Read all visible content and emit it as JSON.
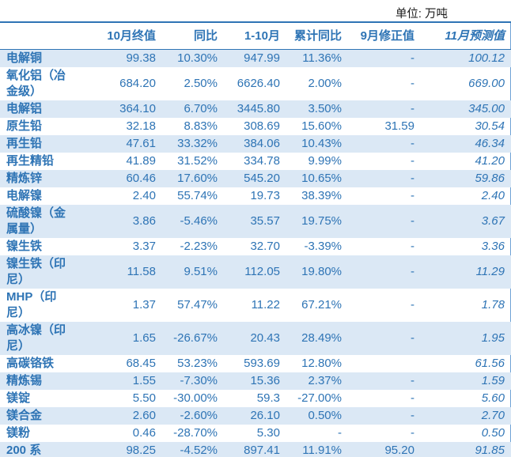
{
  "unit_label": "单位: 万吨",
  "colors": {
    "accent_blue": "#2E74B5",
    "value_blue": "#2E74B5",
    "row_band_blue": "#DBE8F5",
    "rule_blue": "#2E74B5",
    "right_edge_blue": "#6FA3D6"
  },
  "table": {
    "columns": [
      "",
      "10月终值",
      "同比",
      "1-10月",
      "累计同比",
      "9月修正值",
      "11月预测值"
    ],
    "rows": [
      {
        "label": "电解铜",
        "values": [
          "99.38",
          "10.30%",
          "947.99",
          "11.36%",
          "-",
          "100.12"
        ]
      },
      {
        "label": "氧化铝（冶金级）",
        "values": [
          "684.20",
          "2.50%",
          "6626.40",
          "2.00%",
          "-",
          "669.00"
        ]
      },
      {
        "label": "电解铝",
        "values": [
          "364.10",
          "6.70%",
          "3445.80",
          "3.50%",
          "-",
          "345.00"
        ]
      },
      {
        "label": "原生铅",
        "values": [
          "32.18",
          "8.83%",
          "308.69",
          "15.60%",
          "31.59",
          "30.54"
        ]
      },
      {
        "label": "再生铅",
        "values": [
          "47.61",
          "33.32%",
          "384.06",
          "10.43%",
          "-",
          "46.34"
        ]
      },
      {
        "label": "再生精铅",
        "values": [
          "41.89",
          "31.52%",
          "334.78",
          "9.99%",
          "-",
          "41.20"
        ]
      },
      {
        "label": "精炼锌",
        "values": [
          "60.46",
          "17.60%",
          "545.20",
          "10.65%",
          "-",
          "59.86"
        ]
      },
      {
        "label": "电解镍",
        "values": [
          "2.40",
          "55.74%",
          "19.73",
          "38.39%",
          "-",
          "2.40"
        ]
      },
      {
        "label": "硫酸镍（金属量）",
        "values": [
          "3.86",
          "-5.46%",
          "35.57",
          "19.75%",
          "-",
          "3.67"
        ]
      },
      {
        "label": "镍生铁",
        "values": [
          "3.37",
          "-2.23%",
          "32.70",
          "-3.39%",
          "-",
          "3.36"
        ]
      },
      {
        "label": "镍生铁（印尼）",
        "values": [
          "11.58",
          "9.51%",
          "112.05",
          "19.80%",
          "-",
          "11.29"
        ]
      },
      {
        "label": "MHP（印尼）",
        "values": [
          "1.37",
          "57.47%",
          "11.22",
          "67.21%",
          "-",
          "1.78"
        ]
      },
      {
        "label": "高冰镍（印尼）",
        "values": [
          "1.65",
          "-26.67%",
          "20.43",
          "28.49%",
          "-",
          "1.95"
        ]
      },
      {
        "label": "高碳铬铁",
        "values": [
          "68.45",
          "53.23%",
          "593.69",
          "12.80%",
          "",
          "61.56"
        ]
      },
      {
        "label": "精炼锡",
        "values": [
          "1.55",
          "-7.30%",
          "15.36",
          "2.37%",
          "-",
          "1.59"
        ]
      },
      {
        "label": "镁锭",
        "values": [
          "5.50",
          "-30.00%",
          "59.3",
          "-27.00%",
          "-",
          "5.60"
        ]
      },
      {
        "label": "镁合金",
        "values": [
          "2.60",
          "-2.60%",
          "26.10",
          "0.50%",
          "-",
          "2.70"
        ]
      },
      {
        "label": "镁粉",
        "values": [
          "0.46",
          "-28.70%",
          "5.30",
          "-",
          "-",
          "0.50"
        ]
      },
      {
        "label": "200 系",
        "values": [
          "98.25",
          "-4.52%",
          "897.41",
          "11.91%",
          "95.20",
          "91.85"
        ]
      }
    ]
  }
}
